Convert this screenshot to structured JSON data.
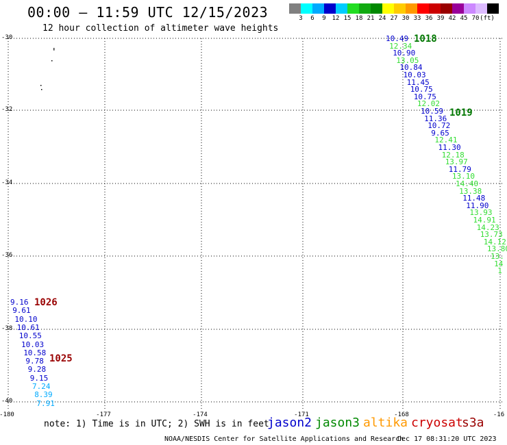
{
  "title": "00:00 – 11:59 UTC 12/15/2023",
  "subtitle": "12 hour collection of altimeter wave heights",
  "scale": {
    "colors": [
      "#808080",
      "#00ffff",
      "#00aaff",
      "#0000cc",
      "#00ccff",
      "#22dd22",
      "#11aa11",
      "#008800",
      "#ffff00",
      "#ffcc00",
      "#ff9900",
      "#ff0000",
      "#cc0000",
      "#990000",
      "#990099",
      "#cc88ff",
      "#ddbbff",
      "#000000"
    ],
    "labels": [
      "3",
      "6",
      "9",
      "12",
      "15",
      "18",
      "21",
      "24",
      "27",
      "30",
      "33",
      "36",
      "39",
      "42",
      "45",
      "70",
      "(ft)"
    ]
  },
  "lat_labels": [
    "-30",
    "-32",
    "-34",
    "-36",
    "-38",
    "-40"
  ],
  "lon_labels": [
    "-180",
    "-177",
    "-174",
    "-171",
    "-168",
    "-16"
  ],
  "tracks": {
    "east": [
      {
        "v": "10.49",
        "c": "#0000cc"
      },
      {
        "v": "12.34",
        "c": "#33dd33"
      },
      {
        "v": "10.90",
        "c": "#0000cc"
      },
      {
        "v": "13.05",
        "c": "#33dd33"
      },
      {
        "v": "10.84",
        "c": "#0000cc"
      },
      {
        "v": "10.03",
        "c": "#0000cc"
      },
      {
        "v": "11.45",
        "c": "#0000cc"
      },
      {
        "v": "10.75",
        "c": "#0000cc"
      },
      {
        "v": "10.75",
        "c": "#0000cc"
      },
      {
        "v": "12.02",
        "c": "#33dd33"
      },
      {
        "v": "10.59",
        "c": "#0000cc"
      },
      {
        "v": "11.36",
        "c": "#0000cc"
      },
      {
        "v": "10.72",
        "c": "#0000cc"
      },
      {
        "v": "9.65",
        "c": "#0000cc"
      },
      {
        "v": "12.41",
        "c": "#33dd33"
      },
      {
        "v": "11.30",
        "c": "#0000cc"
      },
      {
        "v": "12.18",
        "c": "#33dd33"
      },
      {
        "v": "13.97",
        "c": "#33dd33"
      },
      {
        "v": "11.79",
        "c": "#0000cc"
      },
      {
        "v": "13.10",
        "c": "#33dd33"
      },
      {
        "v": "14.40",
        "c": "#33dd33"
      },
      {
        "v": "13.38",
        "c": "#33dd33"
      },
      {
        "v": "11.48",
        "c": "#0000cc"
      },
      {
        "v": "11.90",
        "c": "#0000cc"
      },
      {
        "v": "13.93",
        "c": "#33dd33"
      },
      {
        "v": "14.91",
        "c": "#33dd33"
      },
      {
        "v": "14.23",
        "c": "#33dd33"
      },
      {
        "v": "13.73",
        "c": "#33dd33"
      },
      {
        "v": "14.12",
        "c": "#33dd33"
      },
      {
        "v": "13.80",
        "c": "#33dd33"
      },
      {
        "v": "13.",
        "c": "#33dd33"
      },
      {
        "v": "14",
        "c": "#33dd33"
      },
      {
        "v": "1",
        "c": "#33dd33"
      }
    ],
    "west": [
      {
        "v": "9.16",
        "c": "#0000cc"
      },
      {
        "v": "9.61",
        "c": "#0000cc"
      },
      {
        "v": "10.10",
        "c": "#0000cc"
      },
      {
        "v": "10.61",
        "c": "#0000cc"
      },
      {
        "v": "10.55",
        "c": "#0000cc"
      },
      {
        "v": "10.03",
        "c": "#0000cc"
      },
      {
        "v": "10.58",
        "c": "#0000cc"
      },
      {
        "v": "9.78",
        "c": "#0000cc"
      },
      {
        "v": "9.28",
        "c": "#0000cc"
      },
      {
        "v": "9.15",
        "c": "#0000cc"
      },
      {
        "v": "7.24",
        "c": "#00aaff"
      },
      {
        "v": "8.39",
        "c": "#00aaff"
      },
      {
        "v": "7.91",
        "c": "#00aaff"
      }
    ]
  },
  "pressure": {
    "p1018": "1018",
    "p1019": "1019",
    "p1026": "1026",
    "p1025": "1025"
  },
  "note": "note: 1) Time is in UTC; 2) SWH is in feet",
  "legend": {
    "jason2": "jason2",
    "jason3": "jason3",
    "altika": "altika",
    "cryosat": "cryosat",
    "s3a": "s3a",
    "colors": {
      "jason2": "#0000cc",
      "jason3": "#008800",
      "altika": "#ff9900",
      "cryosat": "#cc0000",
      "s3a": "#990000"
    }
  },
  "footer_left": "NOAA/NESDIS Center for Satellite Applications and Research",
  "footer_right": "Dec 17 08:31:20 UTC 2023"
}
